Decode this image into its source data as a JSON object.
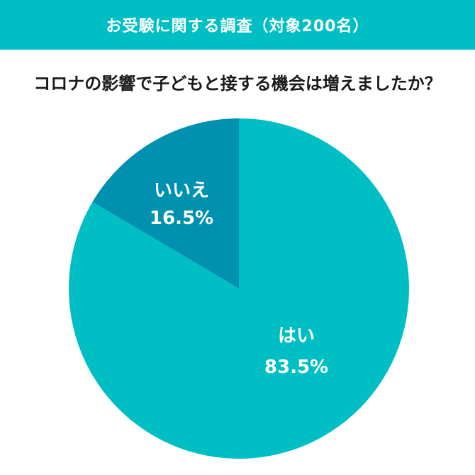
{
  "header": {
    "title": "お受験に関する調査（対象200名）"
  },
  "question": "コロナの影響で子どもと接する機会は増えましたか？",
  "colors": {
    "header_bg": "#00bfc4",
    "yes": "#00bfc4",
    "no": "#0090b0",
    "label_text": "#ffffff"
  },
  "chart_data": {
    "type": "pie",
    "title": "",
    "slices": [
      {
        "label": "はい",
        "value": 83.5,
        "value_text": "83.5%",
        "color": "#00bfc4"
      },
      {
        "label": "いいえ",
        "value": 16.5,
        "value_text": "16.5%",
        "color": "#0090b0"
      }
    ],
    "start": "12 o'clock",
    "direction": "clockwise",
    "legend": "none",
    "labels": "inside slices"
  }
}
